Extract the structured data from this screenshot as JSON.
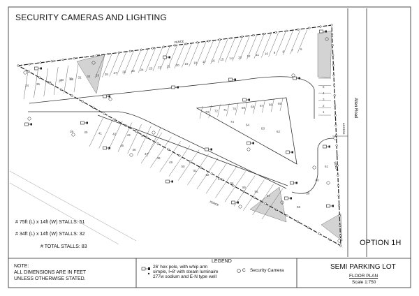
{
  "title": "SECURITY CAMERAS AND LIGHTING",
  "stalls": {
    "line1": "# 75ft (L) x 14ft (W) STALLS:  51",
    "line2": "# 34ft (L) x 14ft (W) STALLS:  32",
    "total": "#  TOTAL STALLS: 83"
  },
  "option": "OPTION 1H",
  "plan_labels": {
    "fence_top": "FENCE",
    "fence_right": "FENCE",
    "fence_bottom": "FENCE",
    "road": "Allen Road",
    "access": "ACCESS"
  },
  "note": {
    "heading": "NOTE:",
    "line1": "ALL DIMENSIONS ARE IN FEET",
    "line2": "UNLESS OTHERWISE STATED."
  },
  "legend": {
    "title": "LEGEND",
    "pole_line1": "26' hex pole, with whip arm",
    "pole_line2": "simple, l=8' with steam luminaire",
    "pole_line3": "277w sodium and E-N type well",
    "camera_symbol": "C",
    "camera_label": "Security Camera"
  },
  "project": {
    "title": "SEMI PARKING LOT",
    "subtitle": "FLOOR PLAN",
    "scale": "Scale  1:750"
  },
  "stall_numbers": {
    "top_row": [
      "33",
      "32",
      "31",
      "30",
      "29",
      "28",
      "27",
      "26",
      "25",
      "24",
      "23",
      "22",
      "21",
      "20",
      "19",
      "18",
      "17",
      "16",
      "15",
      "14",
      "13",
      "12",
      "11",
      "10",
      "9",
      "8",
      "7",
      "6"
    ],
    "upper_left": [
      "34",
      "35",
      "36",
      "37",
      "38"
    ],
    "right_column": [
      "5",
      "4",
      "3",
      "2",
      "1"
    ],
    "island_top": [
      "73",
      "72",
      "71",
      "70",
      "69",
      "68",
      "67",
      "66",
      "65"
    ],
    "island_inner": [
      "74",
      "64",
      "63",
      "62"
    ],
    "lower_top": [
      "39",
      "40",
      "41",
      "42",
      "43",
      "44"
    ],
    "lower_row": [
      "45",
      "46",
      "47",
      "48",
      "49",
      "50",
      "51",
      "52",
      "53",
      "54",
      "55",
      "56",
      "57"
    ],
    "right_lower": [
      "58",
      "59",
      "60",
      "61"
    ]
  },
  "colors": {
    "line": "#222222",
    "stall_line": "#666666",
    "shade": "#d3d3d3",
    "fill": "#ffffff"
  }
}
